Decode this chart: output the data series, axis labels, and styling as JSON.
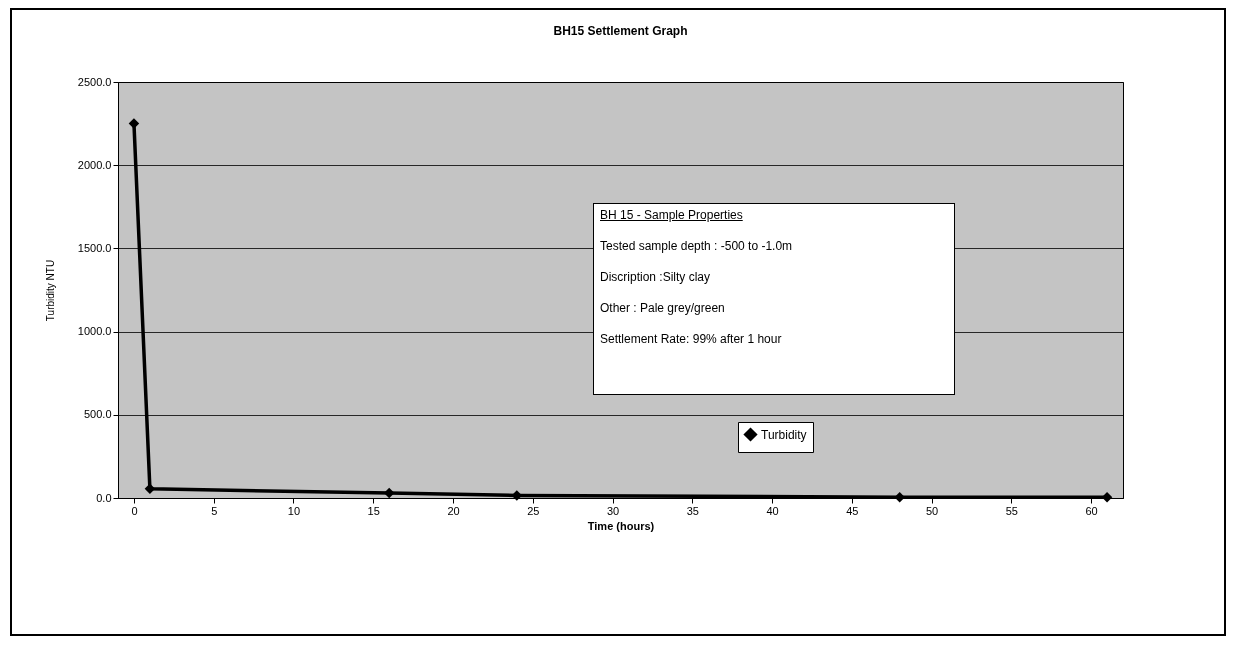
{
  "chart_data": {
    "type": "line",
    "title": "BH15 Settlement Graph",
    "xlabel": "Time (hours)",
    "ylabel": "Turbidity NTU",
    "x": [
      0,
      1,
      16,
      24,
      48,
      61
    ],
    "series": [
      {
        "name": "Turbidity",
        "color": "#000000",
        "values": [
          2250,
          55,
          30,
          15,
          5,
          5
        ]
      }
    ],
    "xlim": [
      -1,
      62
    ],
    "xticks": [
      0,
      5,
      10,
      15,
      20,
      25,
      30,
      35,
      40,
      45,
      50,
      55,
      60
    ],
    "ylim": [
      0,
      2500
    ],
    "yticks": [
      {
        "value": 0,
        "label": "0.0"
      },
      {
        "value": 500,
        "label": "500.0"
      },
      {
        "value": 1000,
        "label": "1000.0"
      },
      {
        "value": 1500,
        "label": "1500.0"
      },
      {
        "value": 2000,
        "label": "2000.0"
      },
      {
        "value": 2500,
        "label": "2500.0"
      }
    ],
    "grid": "y",
    "legend": "bottom",
    "marker": "diamond",
    "line_style": "solid",
    "annotations": [
      "BH 15 - Sample Properties",
      "Tested sample depth : -500 to -1.0m",
      "Discription :Silty clay",
      "Other : Pale grey/green",
      "Settlement Rate: 99% after 1 hour"
    ]
  }
}
